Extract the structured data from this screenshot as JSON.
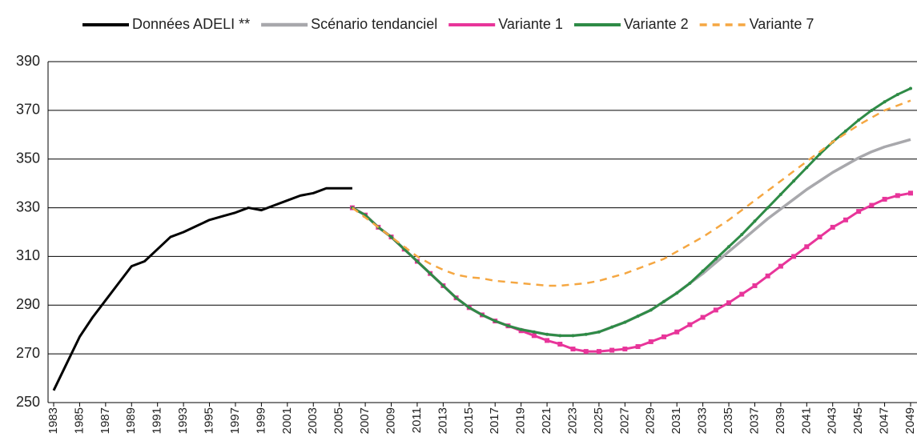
{
  "chart_data": {
    "type": "line",
    "x": [
      1983,
      1984,
      1985,
      1986,
      1987,
      1988,
      1989,
      1990,
      1991,
      1992,
      1993,
      1994,
      1995,
      1996,
      1997,
      1998,
      1999,
      2000,
      2001,
      2002,
      2003,
      2004,
      2005,
      2006,
      2007,
      2008,
      2009,
      2010,
      2011,
      2012,
      2013,
      2014,
      2015,
      2016,
      2017,
      2018,
      2019,
      2020,
      2021,
      2022,
      2023,
      2024,
      2025,
      2026,
      2027,
      2028,
      2029,
      2030,
      2031,
      2032,
      2033,
      2034,
      2035,
      2036,
      2037,
      2038,
      2039,
      2040,
      2041,
      2042,
      2043,
      2044,
      2045,
      2046,
      2047,
      2048,
      2049
    ],
    "series": [
      {
        "name": "Données ADELI **",
        "color": "#000000",
        "width": 3,
        "values": [
          255,
          266,
          277,
          285,
          292,
          299,
          306,
          308,
          313,
          318,
          320,
          322.5,
          325,
          326.5,
          328,
          330,
          329,
          331,
          333,
          335,
          336,
          338,
          338,
          338,
          null,
          null,
          null,
          null,
          null,
          null,
          null,
          null,
          null,
          null,
          null,
          null,
          null,
          null,
          null,
          null,
          null,
          null,
          null,
          null,
          null,
          null,
          null,
          null,
          null,
          null,
          null,
          null,
          null,
          null,
          null,
          null,
          null,
          null,
          null,
          null,
          null,
          null,
          null,
          null,
          null,
          null,
          null
        ]
      },
      {
        "name": "Scénario tendanciel",
        "color": "#a8a8ac",
        "width": 3.5,
        "values": [
          null,
          null,
          null,
          null,
          null,
          null,
          null,
          null,
          null,
          null,
          null,
          null,
          null,
          null,
          null,
          null,
          null,
          null,
          null,
          null,
          null,
          null,
          null,
          330,
          327,
          322,
          318,
          313,
          308,
          303,
          298,
          293,
          289,
          286,
          283.5,
          281.5,
          280,
          279,
          278,
          277.5,
          277.5,
          278,
          279,
          281,
          283,
          285.5,
          288,
          291.5,
          295,
          299,
          303,
          307.5,
          312,
          316.5,
          321,
          325.5,
          329.5,
          333.5,
          337.5,
          341,
          344.5,
          347.5,
          350.5,
          353,
          355,
          356.5,
          358
        ]
      },
      {
        "name": "Variante 1",
        "color": "#e8359a",
        "width": 3,
        "marker": "square",
        "values": [
          null,
          null,
          null,
          null,
          null,
          null,
          null,
          null,
          null,
          null,
          null,
          null,
          null,
          null,
          null,
          null,
          null,
          null,
          null,
          null,
          null,
          null,
          null,
          330,
          327,
          322,
          318,
          313,
          308,
          303,
          298,
          293,
          289,
          286,
          283.5,
          281.5,
          279.5,
          277.5,
          275.5,
          274,
          272,
          271,
          271,
          271.5,
          272,
          273,
          275,
          277,
          279,
          282,
          285,
          288,
          291,
          294.5,
          298,
          302,
          306,
          310,
          314,
          318,
          322,
          325,
          328.5,
          331,
          333.5,
          335,
          336
        ]
      },
      {
        "name": "Variante 2",
        "color": "#2e8b46",
        "width": 3,
        "marker": "dot",
        "values": [
          null,
          null,
          null,
          null,
          null,
          null,
          null,
          null,
          null,
          null,
          null,
          null,
          null,
          null,
          null,
          null,
          null,
          null,
          null,
          null,
          null,
          null,
          null,
          330,
          327,
          322,
          318,
          313,
          308,
          303,
          298,
          293,
          289,
          286,
          283.5,
          281.5,
          280,
          279,
          278,
          277.5,
          277.5,
          278,
          279,
          281,
          283,
          285.5,
          288,
          291.5,
          295,
          299,
          304,
          309,
          314,
          319,
          324.5,
          330,
          335.5,
          341,
          346.5,
          352,
          357,
          361.5,
          366,
          370,
          373.5,
          376.5,
          379
        ]
      },
      {
        "name": "Variante 7",
        "color": "#f5a742",
        "width": 2.5,
        "dashed": true,
        "values": [
          null,
          null,
          null,
          null,
          null,
          null,
          null,
          null,
          null,
          null,
          null,
          null,
          null,
          null,
          null,
          null,
          null,
          null,
          null,
          null,
          null,
          null,
          null,
          330,
          326,
          322,
          318,
          314,
          310,
          307,
          304.5,
          302.5,
          301.5,
          301,
          300,
          299.5,
          299,
          298.5,
          298,
          298,
          298.5,
          299,
          300,
          301.5,
          303,
          305,
          307,
          309,
          312,
          315,
          318,
          321.5,
          325,
          329,
          333,
          337,
          341,
          345,
          349,
          353,
          357,
          360.5,
          364,
          367,
          370,
          372,
          374
        ]
      }
    ],
    "xlim": [
      1983,
      2049
    ],
    "xticks": [
      1983,
      1985,
      1987,
      1989,
      1991,
      1993,
      1995,
      1997,
      1999,
      2001,
      2003,
      2005,
      2007,
      2009,
      2011,
      2013,
      2015,
      2017,
      2019,
      2021,
      2023,
      2025,
      2027,
      2029,
      2031,
      2033,
      2035,
      2037,
      2039,
      2041,
      2043,
      2045,
      2047,
      2049
    ],
    "ylim": [
      250,
      390
    ],
    "yticks": [
      250,
      270,
      290,
      310,
      330,
      350,
      370,
      390
    ],
    "grid": true,
    "legend": "top"
  }
}
